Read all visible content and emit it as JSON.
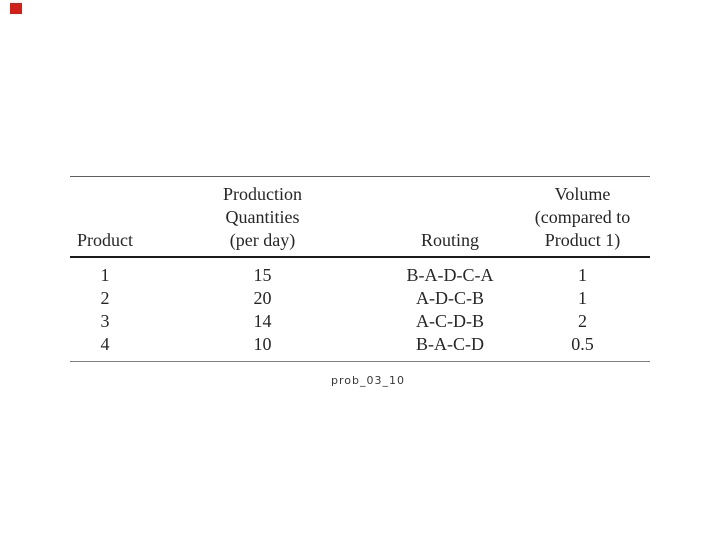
{
  "page": {
    "background": "#ffffff",
    "marker_color": "#d02018",
    "text_color": "#262626"
  },
  "table": {
    "columns": [
      {
        "header_lines": [
          "Product"
        ]
      },
      {
        "header_lines": [
          "Production",
          "Quantities",
          "(per day)"
        ]
      },
      {
        "header_lines": [
          "Routing"
        ]
      },
      {
        "header_lines": [
          "Volume",
          "(compared to",
          "Product 1)"
        ]
      }
    ],
    "rows": [
      [
        "1",
        "15",
        "B-A-D-C-A",
        "1"
      ],
      [
        "2",
        "20",
        "A-D-C-B",
        "1"
      ],
      [
        "3",
        "14",
        "A-C-D-B",
        "2"
      ],
      [
        "4",
        "10",
        "B-A-C-D",
        "0.5"
      ]
    ]
  },
  "caption": "prob_03_10",
  "chart_data": {
    "type": "table",
    "title": "",
    "columns": [
      "Product",
      "Production Quantities (per day)",
      "Routing",
      "Volume (compared to Product 1)"
    ],
    "rows": [
      [
        "1",
        "15",
        "B-A-D-C-A",
        "1"
      ],
      [
        "2",
        "20",
        "A-D-C-B",
        "1"
      ],
      [
        "3",
        "14",
        "A-C-D-B",
        "2"
      ],
      [
        "4",
        "10",
        "B-A-C-D",
        "0.5"
      ]
    ]
  }
}
